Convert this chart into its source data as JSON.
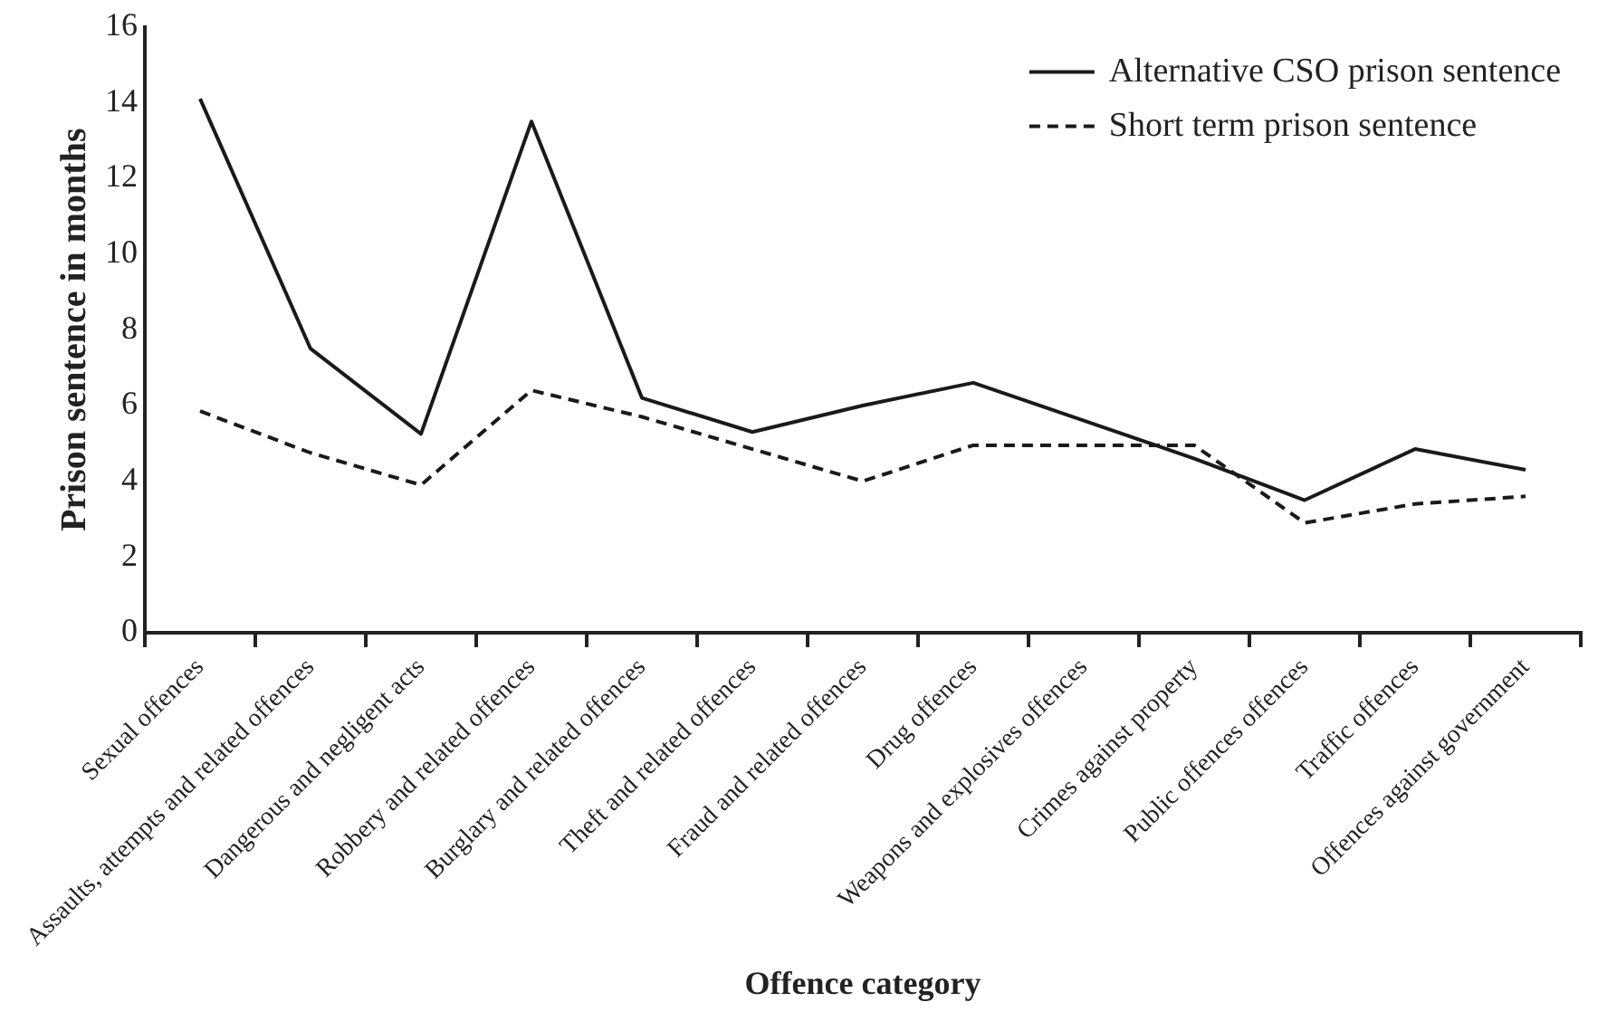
{
  "chart_data": {
    "type": "line",
    "xlabel": "Offence category",
    "ylabel": "Prison sentence in months",
    "categories": [
      "Sexual offences",
      "Assaults, attempts and related offences",
      "Dangerous and negligent acts",
      "Robbery and related offences",
      "Burglary and related offences",
      "Theft and related offences",
      "Fraud and related offences",
      "Drug offences",
      "Weapons and explosives offences",
      "Crimes against property",
      "Public offences offences",
      "Traffic offences",
      "Offences against government"
    ],
    "series": [
      {
        "name": "Alternative CSO prison sentence",
        "color": "#1a1a1a",
        "line_style": "solid",
        "values": [
          14.1,
          7.5,
          5.25,
          13.5,
          6.2,
          5.3,
          6.0,
          6.6,
          5.6,
          4.6,
          3.5,
          4.85,
          4.3
        ]
      },
      {
        "name": "Short term prison sentence",
        "color": "#1a1a1a",
        "line_style": "dashed",
        "values": [
          5.85,
          4.75,
          3.9,
          6.4,
          5.7,
          4.85,
          4.0,
          4.95,
          4.95,
          4.95,
          2.9,
          3.4,
          3.6
        ]
      }
    ],
    "ylim": [
      0,
      16
    ],
    "yticks": [
      0,
      2,
      4,
      6,
      8,
      10,
      12,
      14,
      16
    ],
    "grid": false,
    "legend": "top right",
    "marker": "none"
  }
}
